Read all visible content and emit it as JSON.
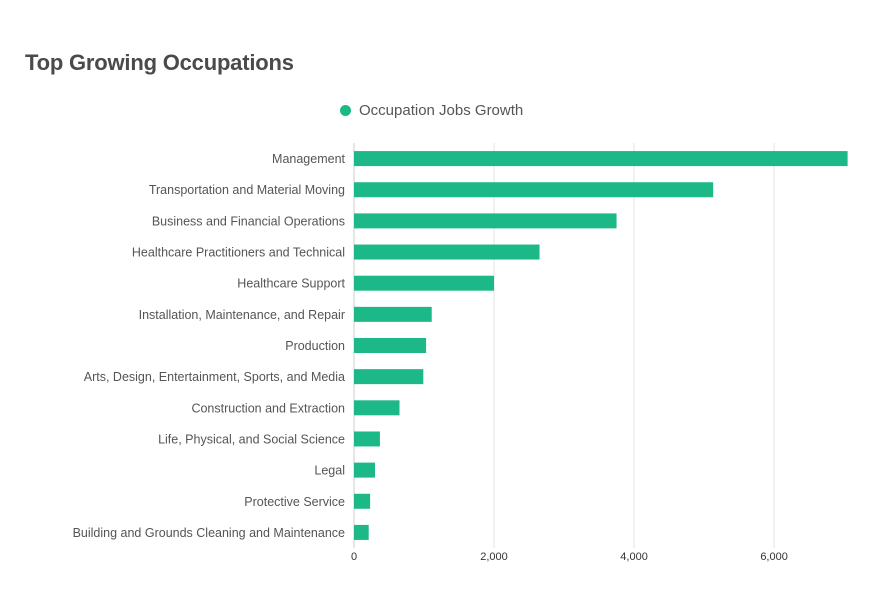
{
  "chart_data": {
    "type": "bar",
    "orientation": "horizontal",
    "title": "Top Growing Occupations",
    "legend": {
      "position": "top-center"
    },
    "series": [
      {
        "name": "Occupation Jobs Growth",
        "color": "#1db887",
        "values": [
          7050,
          5130,
          3750,
          2650,
          2000,
          1110,
          1030,
          990,
          650,
          370,
          300,
          230,
          210
        ]
      }
    ],
    "categories": [
      "Management",
      "Transportation and Material Moving",
      "Business and Financial Operations",
      "Healthcare Practitioners and Technical",
      "Healthcare Support",
      "Installation, Maintenance, and Repair",
      "Production",
      "Arts, Design, Entertainment, Sports, and Media",
      "Construction and Extraction",
      "Life, Physical, and Social Science",
      "Legal",
      "Protective Service",
      "Building and Grounds Cleaning and Maintenance"
    ],
    "xlim": [
      0,
      7070
    ],
    "xticks": [
      0,
      2000,
      4000,
      6000
    ],
    "xtick_labels": [
      "0",
      "2,000",
      "4,000",
      "6,000"
    ],
    "grid": true
  }
}
